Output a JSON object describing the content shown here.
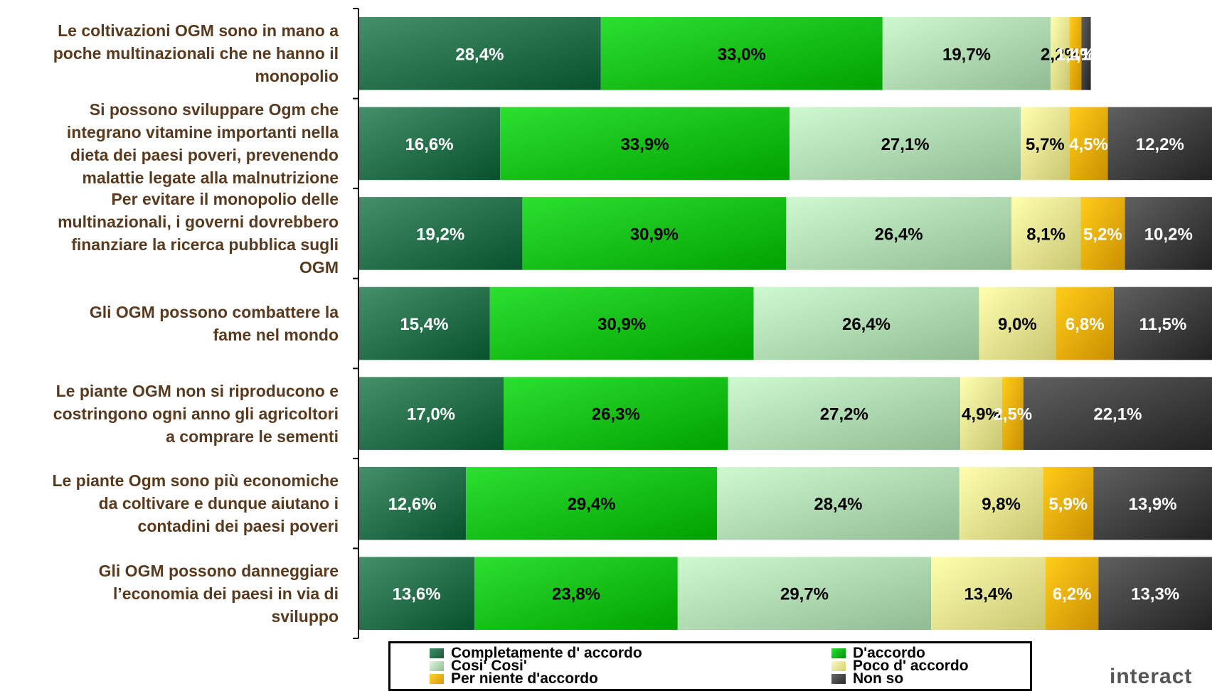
{
  "chart_data": {
    "type": "bar",
    "orientation": "horizontal",
    "stacked": true,
    "percent_format": "comma-decimal",
    "categories": [
      "Le coltivazioni OGM sono in mano a poche multinazionali che ne hanno il monopolio",
      "Si possono sviluppare Ogm che integrano vitamine importanti nella dieta dei paesi poveri, prevenendo malattie legate alla malnutrizione",
      "Per evitare il monopolio delle multinazionali, i governi dovrebbero finanziare la ricerca pubblica sugli OGM",
      "Gli OGM possono combattere la fame nel mondo",
      "Le piante OGM non si riproducono e costringono ogni anno gli agricoltori a comprare le sementi",
      "Le piante Ogm sono più economiche da coltivare e dunque aiutano i contadini dei paesi poveri",
      "Gli OGM possono danneggiare l’economia dei paesi in via di sviluppo"
    ],
    "category_lines": [
      [
        "Le coltivazioni OGM sono in mano a",
        "poche multinazionali che ne hanno il",
        "monopolio"
      ],
      [
        "Si possono sviluppare Ogm che",
        "integrano vitamine importanti nella",
        "dieta dei paesi poveri, prevenendo",
        "malattie legate alla malnutrizione"
      ],
      [
        "Per evitare il monopolio delle",
        "multinazionali, i governi dovrebbero",
        "finanziare la ricerca pubblica sugli",
        "OGM"
      ],
      [
        "Gli OGM possono combattere la",
        "fame nel mondo"
      ],
      [
        "Le piante OGM non si riproducono e",
        "costringono ogni anno gli agricoltori",
        "a comprare le sementi"
      ],
      [
        "Le piante Ogm sono più economiche",
        "da coltivare e dunque aiutano i",
        "contadini dei paesi poveri"
      ],
      [
        "Gli OGM possono danneggiare",
        "l’economia dei paesi in via di",
        "sviluppo"
      ]
    ],
    "series": [
      {
        "name": "Completamente d' accordo",
        "color": "#2f7a55",
        "label_color": "#ffffff",
        "values": [
          28.4,
          16.6,
          19.2,
          15.4,
          17.0,
          12.6,
          13.6
        ]
      },
      {
        "name": "D'accordo",
        "color": "#17c91b",
        "label_color": "#000000",
        "values": [
          33.0,
          33.9,
          30.9,
          30.9,
          26.3,
          29.4,
          23.8
        ]
      },
      {
        "name": "Cosi' Cosi'",
        "color": "#b9e3bb",
        "label_color": "#000000",
        "values": [
          19.7,
          27.1,
          26.4,
          26.4,
          27.2,
          28.4,
          29.7
        ]
      },
      {
        "name": "Poco d' accordo",
        "color": "#f1ee9a",
        "label_color": "#000000",
        "values": [
          2.2,
          5.7,
          8.1,
          9.0,
          4.9,
          9.8,
          13.4
        ]
      },
      {
        "name": "Per niente d'accordo",
        "color": "#f2b705",
        "label_color": "#ffffff",
        "values": [
          1.4,
          4.5,
          5.2,
          6.8,
          2.5,
          5.9,
          6.2
        ]
      },
      {
        "name": "Non so",
        "color": "#4a4a4a",
        "label_color": "#ffffff",
        "values": [
          1.1,
          12.2,
          10.2,
          11.5,
          22.1,
          13.9,
          13.3
        ]
      }
    ],
    "data_labels": [
      [
        "28,4%",
        "33,0%",
        "19,7%",
        "2,2%",
        "1,4%",
        "1,1%"
      ],
      [
        "16,6%",
        "33,9%",
        "27,1%",
        "5,7%",
        "4,5%",
        "12,2%"
      ],
      [
        "19,2%",
        "30,9%",
        "26,4%",
        "8,1%",
        "5,2%",
        "10,2%"
      ],
      [
        "15,4%",
        "30,9%",
        "26,4%",
        "9,0%",
        "6,8%",
        "11,5%"
      ],
      [
        "17,0%",
        "26,3%",
        "27,2%",
        "4,9%",
        "2,5%",
        "22,1%"
      ],
      [
        "12,6%",
        "29,4%",
        "28,4%",
        "9,8%",
        "5,9%",
        "13,9%"
      ],
      [
        "13,6%",
        "23,8%",
        "29,7%",
        "13,4%",
        "6,2%",
        "13,3%"
      ]
    ],
    "legend": {
      "placement": "bottom",
      "entries": [
        "Completamente d' accordo",
        "D'accordo",
        "Cosi' Cosi'",
        "Poco d' accordo",
        "Per niente d'accordo",
        "Non so"
      ]
    },
    "grid": false
  },
  "brand": "interact",
  "colors": {
    "category_text": "#5a3a1e",
    "axis": "#000000"
  }
}
